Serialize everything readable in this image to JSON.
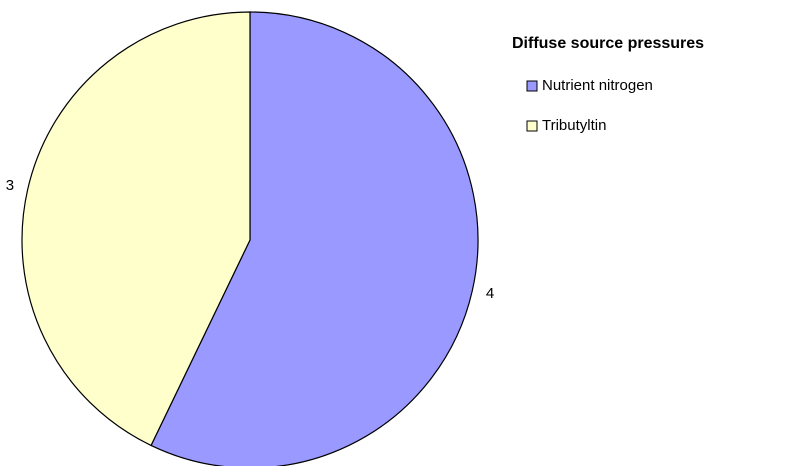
{
  "chart_data": {
    "type": "pie",
    "legend_title": "Diffuse source pressures",
    "categories": [
      "Nutrient nitrogen",
      "Tributyltin"
    ],
    "values": [
      4,
      3
    ],
    "colors": [
      "#9999ff",
      "#ffffcc"
    ],
    "legend": "right"
  }
}
